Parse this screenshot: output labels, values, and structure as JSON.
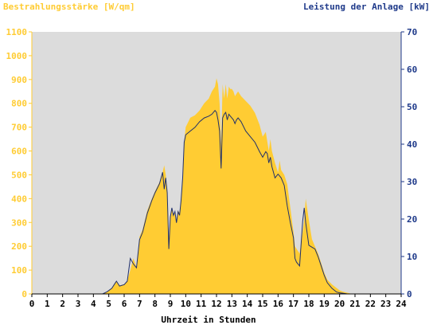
{
  "colors": {
    "irradiance": "#FFCC33",
    "power": "#1F2F6B",
    "plot_background": "#DCDCDC",
    "left_axis": "#FFCC33",
    "right_axis": "#1F3A8A"
  },
  "chart_data": {
    "type": "area",
    "title": "",
    "xlabel": "Uhrzeit in Stunden",
    "ylabel_left": "Bestrahlungsstärke [W/qm]",
    "ylabel_right": "Leistung der Anlage [kW]",
    "xlim": [
      0,
      24
    ],
    "ylim_left": [
      0,
      1100
    ],
    "ylim_right": [
      0,
      70
    ],
    "x_ticks": [
      "0",
      "1",
      "2",
      "3",
      "4",
      "5",
      "6",
      "7",
      "8",
      "9",
      "10",
      "11",
      "12",
      "13",
      "14",
      "15",
      "16",
      "17",
      "18",
      "19",
      "20",
      "21",
      "22",
      "23",
      "24"
    ],
    "y_left_ticks": [
      "0",
      "100",
      "200",
      "300",
      "400",
      "500",
      "600",
      "700",
      "800",
      "900",
      "1000",
      "1100"
    ],
    "y_right_ticks": [
      "0",
      "10",
      "20",
      "30",
      "40",
      "50",
      "60",
      "70"
    ],
    "grid": false,
    "series": [
      {
        "name": "Bestrahlungsstärke [W/qm]",
        "axis": "left",
        "style": "area",
        "x": [
          0,
          4.6,
          4.9,
          5.2,
          5.4,
          5.5,
          5.7,
          6.0,
          6.2,
          6.4,
          6.6,
          6.8,
          7.0,
          7.2,
          7.5,
          7.8,
          8.0,
          8.3,
          8.5,
          8.6,
          8.7,
          8.8,
          8.9,
          9.0,
          9.1,
          9.2,
          9.3,
          9.4,
          9.5,
          9.6,
          9.7,
          9.8,
          9.9,
          10.0,
          10.3,
          10.6,
          10.9,
          11.2,
          11.5,
          11.7,
          11.9,
          12.0,
          12.1,
          12.2,
          12.3,
          12.4,
          12.5,
          12.6,
          12.7,
          12.8,
          12.9,
          13.0,
          13.1,
          13.2,
          13.3,
          13.4,
          13.6,
          13.9,
          14.2,
          14.5,
          14.8,
          15.0,
          15.2,
          15.3,
          15.4,
          15.5,
          15.6,
          15.8,
          16.0,
          16.1,
          16.2,
          16.4,
          16.6,
          16.8,
          17.0,
          17.1,
          17.2,
          17.4,
          17.6,
          17.7,
          17.8,
          18.0,
          18.2,
          18.4,
          18.6,
          18.8,
          19.0,
          19.2,
          19.5,
          19.8,
          20.0,
          20.2,
          20.5,
          20.8,
          21.0,
          24
        ],
        "y": [
          0,
          0,
          10,
          25,
          45,
          55,
          35,
          40,
          55,
          100,
          150,
          110,
          240,
          270,
          350,
          400,
          430,
          470,
          510,
          540,
          500,
          440,
          240,
          330,
          360,
          330,
          340,
          310,
          350,
          340,
          400,
          500,
          640,
          700,
          740,
          750,
          770,
          800,
          820,
          850,
          870,
          905,
          880,
          800,
          620,
          880,
          820,
          880,
          820,
          870,
          860,
          860,
          850,
          830,
          840,
          850,
          830,
          810,
          790,
          760,
          710,
          660,
          680,
          640,
          600,
          650,
          600,
          550,
          510,
          560,
          520,
          500,
          460,
          360,
          260,
          200,
          190,
          170,
          260,
          310,
          400,
          310,
          230,
          200,
          170,
          130,
          90,
          60,
          40,
          25,
          15,
          10,
          5,
          0,
          0,
          0
        ],
        "color": "#FFCC33"
      },
      {
        "name": "Leistung der Anlage [kW]",
        "axis": "right",
        "style": "line",
        "x": [
          0,
          4.6,
          4.9,
          5.2,
          5.4,
          5.5,
          5.7,
          6.0,
          6.2,
          6.4,
          6.6,
          6.8,
          7.0,
          7.2,
          7.5,
          7.8,
          8.0,
          8.3,
          8.5,
          8.6,
          8.7,
          8.8,
          8.9,
          9.0,
          9.1,
          9.2,
          9.3,
          9.4,
          9.5,
          9.6,
          9.7,
          9.8,
          9.9,
          10.0,
          10.3,
          10.6,
          10.9,
          11.2,
          11.5,
          11.7,
          11.9,
          12.0,
          12.1,
          12.2,
          12.3,
          12.4,
          12.5,
          12.6,
          12.7,
          12.8,
          12.9,
          13.0,
          13.1,
          13.2,
          13.3,
          13.4,
          13.6,
          13.9,
          14.2,
          14.5,
          14.8,
          15.0,
          15.2,
          15.3,
          15.4,
          15.5,
          15.6,
          15.8,
          16.0,
          16.1,
          16.2,
          16.4,
          16.6,
          16.8,
          17.0,
          17.1,
          17.2,
          17.4,
          17.6,
          17.7,
          17.8,
          18.0,
          18.2,
          18.4,
          18.6,
          18.8,
          19.0,
          19.2,
          19.5,
          19.8,
          20.0,
          20.2,
          20.5,
          20.8,
          21.0,
          24
        ],
        "y": [
          0,
          0,
          0.6,
          1.5,
          2.8,
          3.4,
          2.1,
          2.5,
          3.4,
          9.5,
          8.0,
          7.0,
          14.5,
          16.5,
          21.5,
          25.0,
          27.0,
          29.5,
          32.5,
          28.0,
          31.0,
          27.0,
          12.0,
          20.5,
          23.0,
          21.0,
          22.0,
          19.0,
          22.0,
          21.0,
          25.0,
          31.0,
          40.5,
          42.5,
          43.5,
          44.5,
          46.0,
          47.0,
          47.5,
          48.0,
          49.0,
          48.5,
          46.5,
          43.5,
          33.5,
          47.0,
          48.0,
          48.5,
          46.5,
          48.0,
          47.5,
          47.0,
          46.5,
          45.5,
          46.5,
          47.0,
          46.0,
          43.5,
          42.0,
          40.5,
          38.0,
          36.5,
          38.0,
          37.5,
          35.0,
          36.5,
          34.0,
          31.0,
          32.0,
          31.5,
          31.0,
          29.0,
          23.5,
          19.0,
          15.0,
          9.5,
          8.5,
          7.5,
          19.5,
          23.0,
          19.0,
          13.0,
          12.5,
          12.0,
          10.0,
          7.5,
          5.0,
          3.0,
          1.5,
          0.5,
          0.3,
          0.2,
          0,
          0,
          0,
          0
        ],
        "color": "#1F2F6B"
      }
    ]
  }
}
